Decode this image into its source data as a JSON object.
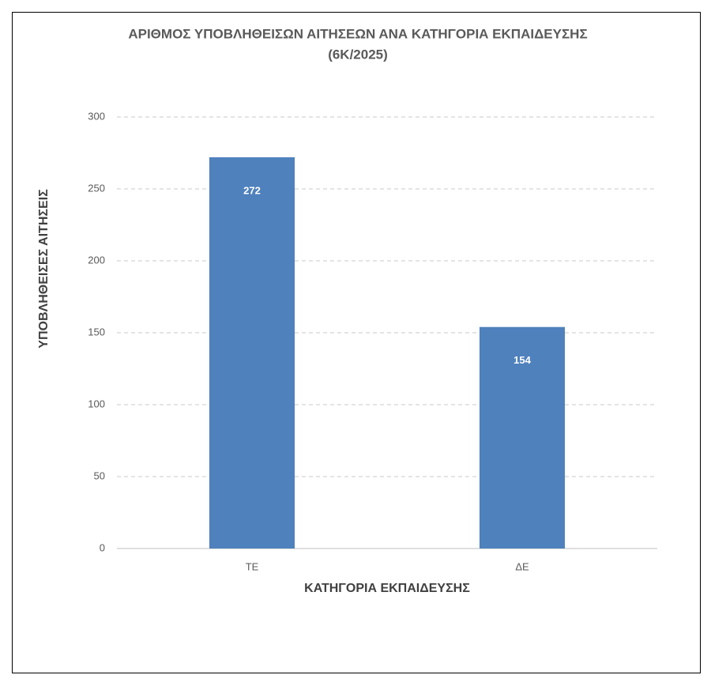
{
  "chart_data": {
    "type": "bar",
    "title": "ΑΡΙΘΜΟΣ ΥΠΟΒΛΗΘΕΙΣΩΝ  ΑΙΤΗΣΕΩΝ  ΑΝΑ ΚΑΤΗΓΟΡΙΑ  ΕΚΠΑΙΔΕΥΣΗΣ",
    "subtitle": "(6Κ/2025)",
    "x_label": "ΚΑΤΗΓΟΡΙΑ ΕΚΠΑΙΔΕΥΣΗΣ",
    "y_label": "ΥΠΟΒΛΗΘΕΙΣΕΣ ΑΙΤΗΣΕΙΣ",
    "categories": [
      "ΤΕ",
      "ΔΕ"
    ],
    "values": [
      272,
      154
    ],
    "color": "#4f81bd",
    "ylim": [
      0,
      300
    ],
    "yticks": [
      0,
      50,
      100,
      150,
      200,
      250,
      300
    ],
    "grid": true
  }
}
